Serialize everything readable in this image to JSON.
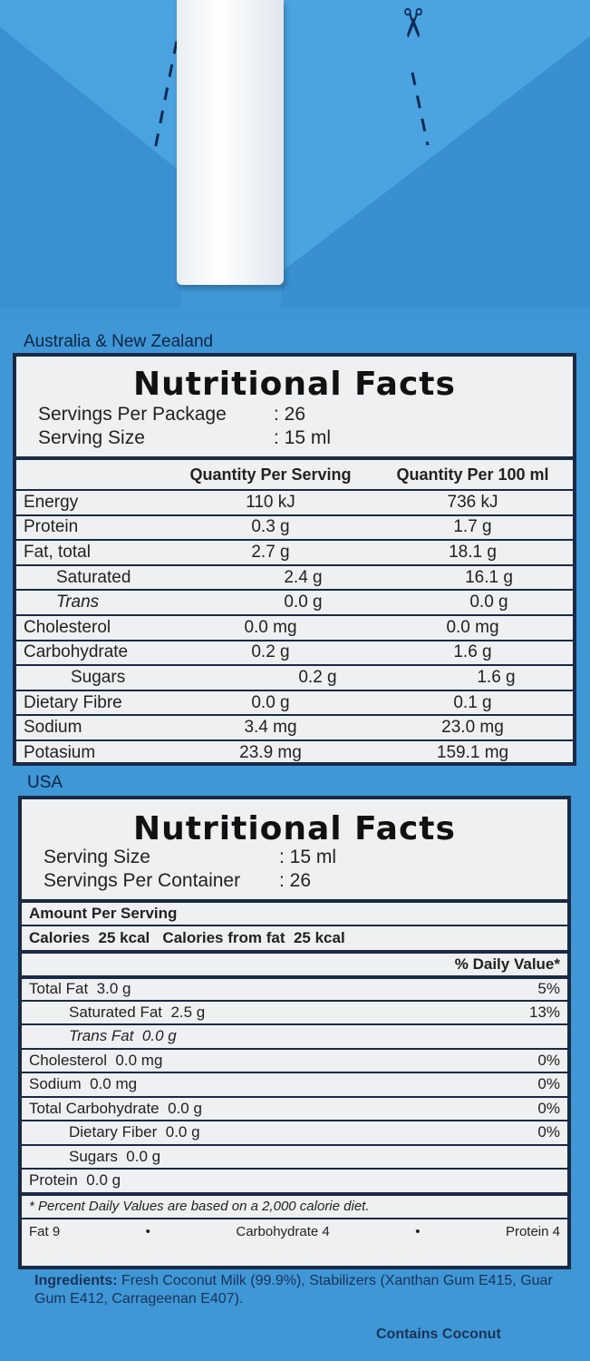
{
  "anz": {
    "region": "Australia & New Zealand",
    "title": "Nutritional Facts",
    "servings_label": "Servings Per Package",
    "servings_value": ": 26",
    "size_label": "Serving Size",
    "size_value": ": 15 ml",
    "col_serving": "Quantity Per Serving",
    "col_100": "Quantity Per 100 ml",
    "rows": [
      {
        "name": "Energy",
        "serving": "110 kJ",
        "per100": "736 kJ"
      },
      {
        "name": "Protein",
        "serving": "0.3 g",
        "per100": "1.7 g"
      },
      {
        "name": "Fat, total",
        "serving": "2.7 g",
        "per100": "18.1 g"
      },
      {
        "name": "Saturated",
        "serving": "2.4 g",
        "per100": "16.1 g"
      },
      {
        "name": "Trans",
        "serving": "0.0 g",
        "per100": "0.0 g"
      },
      {
        "name": "Cholesterol",
        "serving": "0.0 mg",
        "per100": "0.0 mg"
      },
      {
        "name": "Carbohydrate",
        "serving": "0.2 g",
        "per100": "1.6 g"
      },
      {
        "name": "Sugars",
        "serving": "0.2 g",
        "per100": "1.6 g"
      },
      {
        "name": "Dietary Fibre",
        "serving": "0.0 g",
        "per100": "0.1 g"
      },
      {
        "name": "Sodium",
        "serving": "3.4 mg",
        "per100": "23.0 mg"
      },
      {
        "name": "Potasium",
        "serving": "23.9 mg",
        "per100": "159.1 mg"
      }
    ]
  },
  "usa": {
    "region": "USA",
    "title": "Nutritional Facts",
    "size_label": "Serving Size",
    "size_value": ": 15 ml",
    "servings_label": "Servings Per Container",
    "servings_value": ": 26",
    "amount_label": "Amount Per Serving",
    "calories": "Calories  25 kcal   Calories from fat  25 kcal",
    "dv_header": "% Daily Value*",
    "rows": [
      {
        "name": "Total Fat  3.0 g",
        "dv": "5%"
      },
      {
        "name": "Saturated Fat  2.5 g",
        "dv": "13%"
      },
      {
        "name": "Trans Fat  0.0 g",
        "dv": ""
      },
      {
        "name": "Cholesterol  0.0 mg",
        "dv": "0%"
      },
      {
        "name": "Sodium  0.0 mg",
        "dv": "0%"
      },
      {
        "name": "Total Carbohydrate  0.0 g",
        "dv": "0%"
      },
      {
        "name": "Dietary Fiber  0.0 g",
        "dv": "0%"
      },
      {
        "name": "Sugars  0.0 g",
        "dv": ""
      },
      {
        "name": "Protein  0.0 g",
        "dv": ""
      }
    ],
    "footnote": "* Percent Daily Values are based on a 2,000 calorie diet.",
    "cal_fat": "Fat 9",
    "cal_carb": "Carbohydrate 4",
    "cal_protein": "Protein 4",
    "dot": "•"
  },
  "ingredients_label": "Ingredients:",
  "ingredients_text": " Fresh Coconut Milk (99.9%), Stabilizers (Xanthan Gum E415, Guar Gum E412, Carrageenan E407).",
  "contains": "Contains Coconut",
  "icons": {
    "scissors": "scissors-icon"
  }
}
